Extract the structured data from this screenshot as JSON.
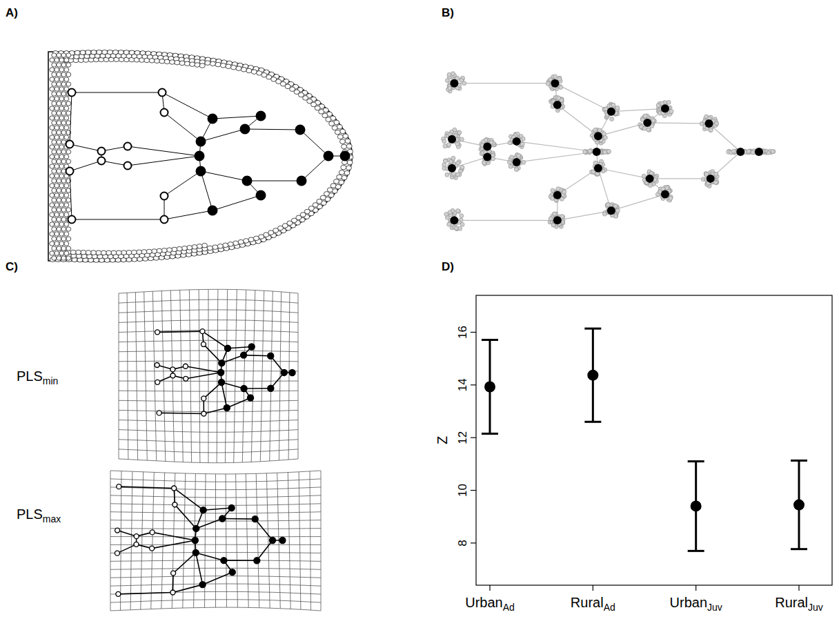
{
  "panel_letters": [
    "A)",
    "B)",
    "C)",
    "D)"
  ],
  "pls_grids": [
    {
      "label": "PLS",
      "subscript": "min"
    },
    {
      "label": "PLS",
      "subscript": "max"
    }
  ],
  "chart_data": {
    "type": "errorbar",
    "categories": [
      "Urban",
      "Rural",
      "Urban",
      "Rural"
    ],
    "category_subscripts": [
      "Ad",
      "Ad",
      "Juv",
      "Juv"
    ],
    "values": [
      13.93,
      14.37,
      9.4,
      9.45
    ],
    "errors": [
      1.78,
      1.77,
      1.7,
      1.68
    ],
    "y_label": "Z",
    "ylim": [
      6.4,
      17.4
    ],
    "yticks": [
      8,
      10,
      12,
      14,
      16
    ],
    "marker": "circle",
    "color": "#000000"
  }
}
